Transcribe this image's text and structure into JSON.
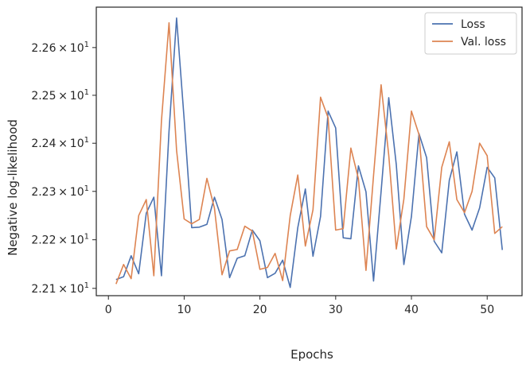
{
  "chart_data": {
    "type": "line",
    "xlabel": "Epochs",
    "ylabel": "Negative log-likelihood",
    "xlim": [
      -1.6,
      54.6
    ],
    "ylim": [
      22.085,
      22.685
    ],
    "yscale": "log",
    "legend_position": "top-right",
    "grid": false,
    "x_ticks": [
      0,
      10,
      20,
      30,
      40,
      50
    ],
    "x_tick_labels": [
      "0",
      "10",
      "20",
      "30",
      "40",
      "50"
    ],
    "y_ticks": [
      22.1,
      22.2,
      22.3,
      22.4,
      22.5,
      22.6
    ],
    "y_tick_labels": [
      {
        "mantissa": "2.21",
        "times": "×",
        "base": "10",
        "exp": "1"
      },
      {
        "mantissa": "2.22",
        "times": "×",
        "base": "10",
        "exp": "1"
      },
      {
        "mantissa": "2.23",
        "times": "×",
        "base": "10",
        "exp": "1"
      },
      {
        "mantissa": "2.24",
        "times": "×",
        "base": "10",
        "exp": "1"
      },
      {
        "mantissa": "2.25",
        "times": "×",
        "base": "10",
        "exp": "1"
      },
      {
        "mantissa": "2.26",
        "times": "×",
        "base": "10",
        "exp": "1"
      }
    ],
    "x": [
      1,
      2,
      3,
      4,
      5,
      6,
      7,
      8,
      9,
      10,
      11,
      12,
      13,
      14,
      15,
      16,
      17,
      18,
      19,
      20,
      21,
      22,
      23,
      24,
      25,
      26,
      27,
      28,
      29,
      30,
      31,
      32,
      33,
      34,
      35,
      36,
      37,
      38,
      39,
      40,
      41,
      42,
      43,
      44,
      45,
      46,
      47,
      48,
      49,
      50,
      51,
      52
    ],
    "series": [
      {
        "name": "Loss",
        "color": "#4c72b0",
        "values": [
          22.118,
          22.124,
          22.167,
          22.13,
          22.255,
          22.288,
          22.126,
          22.425,
          22.662,
          22.45,
          22.225,
          22.226,
          22.232,
          22.288,
          22.242,
          22.122,
          22.162,
          22.167,
          22.22,
          22.198,
          22.122,
          22.131,
          22.158,
          22.102,
          22.225,
          22.305,
          22.166,
          22.248,
          22.467,
          22.432,
          22.204,
          22.202,
          22.353,
          22.299,
          22.115,
          22.3,
          22.495,
          22.355,
          22.149,
          22.248,
          22.42,
          22.37,
          22.197,
          22.173,
          22.323,
          22.382,
          22.253,
          22.22,
          22.266,
          22.35,
          22.328,
          22.179
        ]
      },
      {
        "name": "Val. loss",
        "color": "#dd8452",
        "values": [
          22.109,
          22.149,
          22.12,
          22.25,
          22.283,
          22.126,
          22.447,
          22.652,
          22.385,
          22.243,
          22.233,
          22.242,
          22.327,
          22.265,
          22.128,
          22.177,
          22.18,
          22.228,
          22.218,
          22.139,
          22.143,
          22.172,
          22.116,
          22.25,
          22.334,
          22.187,
          22.262,
          22.496,
          22.453,
          22.22,
          22.223,
          22.39,
          22.326,
          22.137,
          22.333,
          22.522,
          22.375,
          22.181,
          22.284,
          22.467,
          22.418,
          22.227,
          22.2,
          22.35,
          22.403,
          22.283,
          22.256,
          22.3,
          22.4,
          22.374,
          22.213,
          22.227
        ]
      }
    ]
  }
}
